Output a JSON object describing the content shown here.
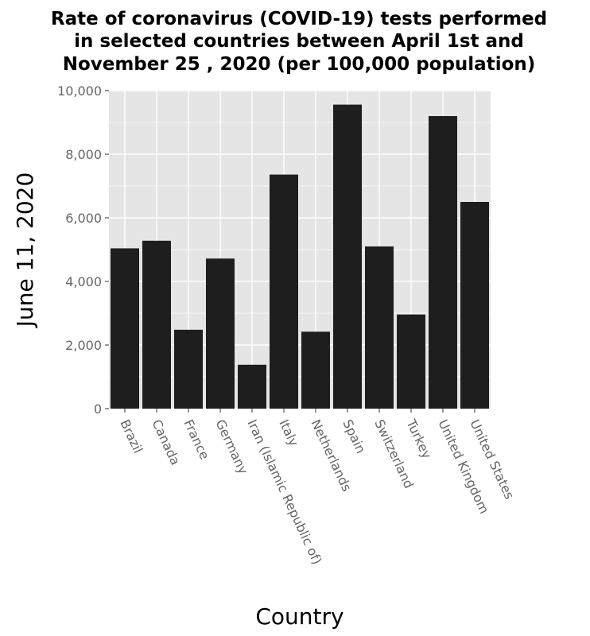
{
  "chart_data": {
    "type": "bar",
    "title_lines": [
      "Rate of coronavirus (COVID-19) tests performed",
      "in selected countries between April 1st and",
      "November 25 , 2020 (per 100,000 population)"
    ],
    "xlabel": "Country",
    "ylabel": "June 11, 2020",
    "categories": [
      "Brazil",
      "Canada",
      "France",
      "Germany",
      "Iran (Islamic Republic of)",
      "Italy",
      "Netherlands",
      "Spain",
      "Switzerland",
      "Turkey",
      "United Kingdom",
      "United States"
    ],
    "values": [
      5040,
      5280,
      2480,
      4720,
      1380,
      7360,
      2420,
      9560,
      5100,
      2960,
      9200,
      6500
    ],
    "ylim": [
      0,
      10000
    ],
    "yticks": [
      0,
      2000,
      4000,
      6000,
      8000,
      10000
    ],
    "ytick_labels": [
      "0",
      "2,000",
      "4,000",
      "6,000",
      "8,000",
      "10,000"
    ],
    "grid": true,
    "colors": {
      "bar": "#1e1e1e",
      "panel": "#e5e5e5",
      "grid": "#ffffff"
    }
  }
}
